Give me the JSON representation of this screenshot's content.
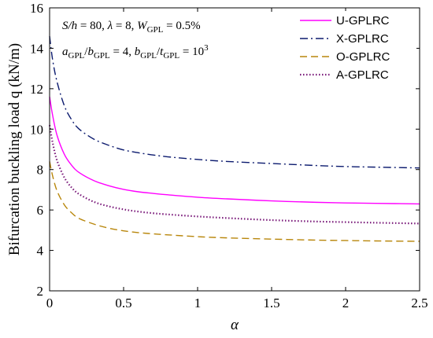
{
  "chart_data": {
    "type": "line",
    "xlabel": "α",
    "ylabel": "Bifurcation buckling load q (kN/m)",
    "xlim": [
      0,
      2.5
    ],
    "ylim": [
      2,
      16
    ],
    "xticks": [
      0,
      0.5,
      1,
      1.5,
      2,
      2.5
    ],
    "xtick_labels": [
      "0",
      "0.5",
      "1",
      "1.5",
      "2",
      "2.5"
    ],
    "yticks": [
      2,
      4,
      6,
      8,
      10,
      12,
      14,
      16
    ],
    "ytick_labels": [
      "2",
      "4",
      "6",
      "8",
      "10",
      "12",
      "14",
      "16"
    ],
    "grid": false,
    "legend_position": "top-right",
    "annotations": [
      "S/h = 80, λ = 8, W_GPL = 0.5%",
      "a_GPL/b_GPL = 4, b_GPL/t_GPL = 10^3"
    ],
    "annotation_parts": {
      "line1": [
        "S/h",
        " = 80, ",
        "λ",
        " = 8, ",
        "W",
        "GPL",
        " = 0.5%"
      ],
      "line2": [
        "a",
        "GPL",
        "/",
        "b",
        "GPL",
        " = 4, ",
        "b",
        "GPL",
        "/",
        "t",
        "GPL",
        " = 10",
        "3"
      ]
    },
    "x": [
      0,
      0.02,
      0.05,
      0.1,
      0.15,
      0.2,
      0.3,
      0.4,
      0.5,
      0.6,
      0.7,
      0.8,
      1.0,
      1.2,
      1.5,
      1.8,
      2.0,
      2.2,
      2.5
    ],
    "series": [
      {
        "name": "U-GPLRC",
        "color": "#ff00ff",
        "dash": "solid",
        "values": [
          11.6,
          10.7,
          9.7,
          8.75,
          8.2,
          7.85,
          7.45,
          7.2,
          7.02,
          6.9,
          6.82,
          6.75,
          6.63,
          6.55,
          6.45,
          6.38,
          6.35,
          6.33,
          6.3
        ]
      },
      {
        "name": "X-GPLRC",
        "color": "#0b1a6e",
        "dash": "dashdot",
        "values": [
          14.6,
          13.45,
          12.35,
          11.15,
          10.45,
          10.0,
          9.5,
          9.2,
          8.97,
          8.83,
          8.72,
          8.63,
          8.5,
          8.4,
          8.3,
          8.2,
          8.15,
          8.12,
          8.08
        ]
      },
      {
        "name": "O-GPLRC",
        "color": "#b8860b",
        "dash": "dashed",
        "values": [
          8.4,
          7.7,
          6.95,
          6.25,
          5.85,
          5.58,
          5.3,
          5.1,
          4.97,
          4.88,
          4.82,
          4.77,
          4.68,
          4.62,
          4.56,
          4.51,
          4.49,
          4.47,
          4.45
        ]
      },
      {
        "name": "A-GPLRC",
        "color": "#7a1a7a",
        "dash": "dotted",
        "values": [
          10.2,
          9.35,
          8.45,
          7.6,
          7.1,
          6.78,
          6.4,
          6.18,
          6.03,
          5.92,
          5.84,
          5.78,
          5.68,
          5.6,
          5.5,
          5.43,
          5.4,
          5.37,
          5.33
        ]
      }
    ]
  }
}
